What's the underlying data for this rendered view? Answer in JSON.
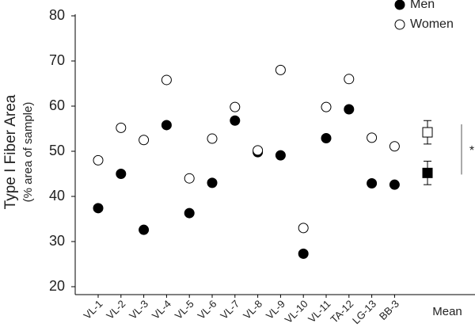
{
  "chart_data": {
    "type": "scatter",
    "y_label": "Type I Fiber Area",
    "y_sublabel": "(% area of sample)",
    "categories": [
      "VL-1",
      "VL-2",
      "VL-3",
      "VL-4",
      "VL-5",
      "VL-6",
      "VL-7",
      "VL-8",
      "VL-9",
      "VL-10",
      "VL-11",
      "TA-12",
      "LG-13",
      "BB-3"
    ],
    "series": [
      {
        "name": "Men",
        "color": "#000000",
        "filled": true,
        "values": [
          37.4,
          45.0,
          32.6,
          55.8,
          36.3,
          43.0,
          56.8,
          49.8,
          49.1,
          27.3,
          52.9,
          59.3,
          42.9,
          42.6
        ]
      },
      {
        "name": "Women",
        "color": "#000000",
        "filled": false,
        "values": [
          48.0,
          55.2,
          52.5,
          65.8,
          44.0,
          52.8,
          59.8,
          50.2,
          68.0,
          33.0,
          59.8,
          66.0,
          53.0,
          51.1
        ]
      }
    ],
    "mean": {
      "label": "Mean",
      "values": [
        45.2,
        54.2
      ],
      "errors": [
        2.6,
        2.6
      ]
    },
    "annotation": "*",
    "ylim": [
      20,
      80
    ],
    "yticks": [
      20,
      30,
      40,
      50,
      60,
      70,
      80
    ]
  }
}
